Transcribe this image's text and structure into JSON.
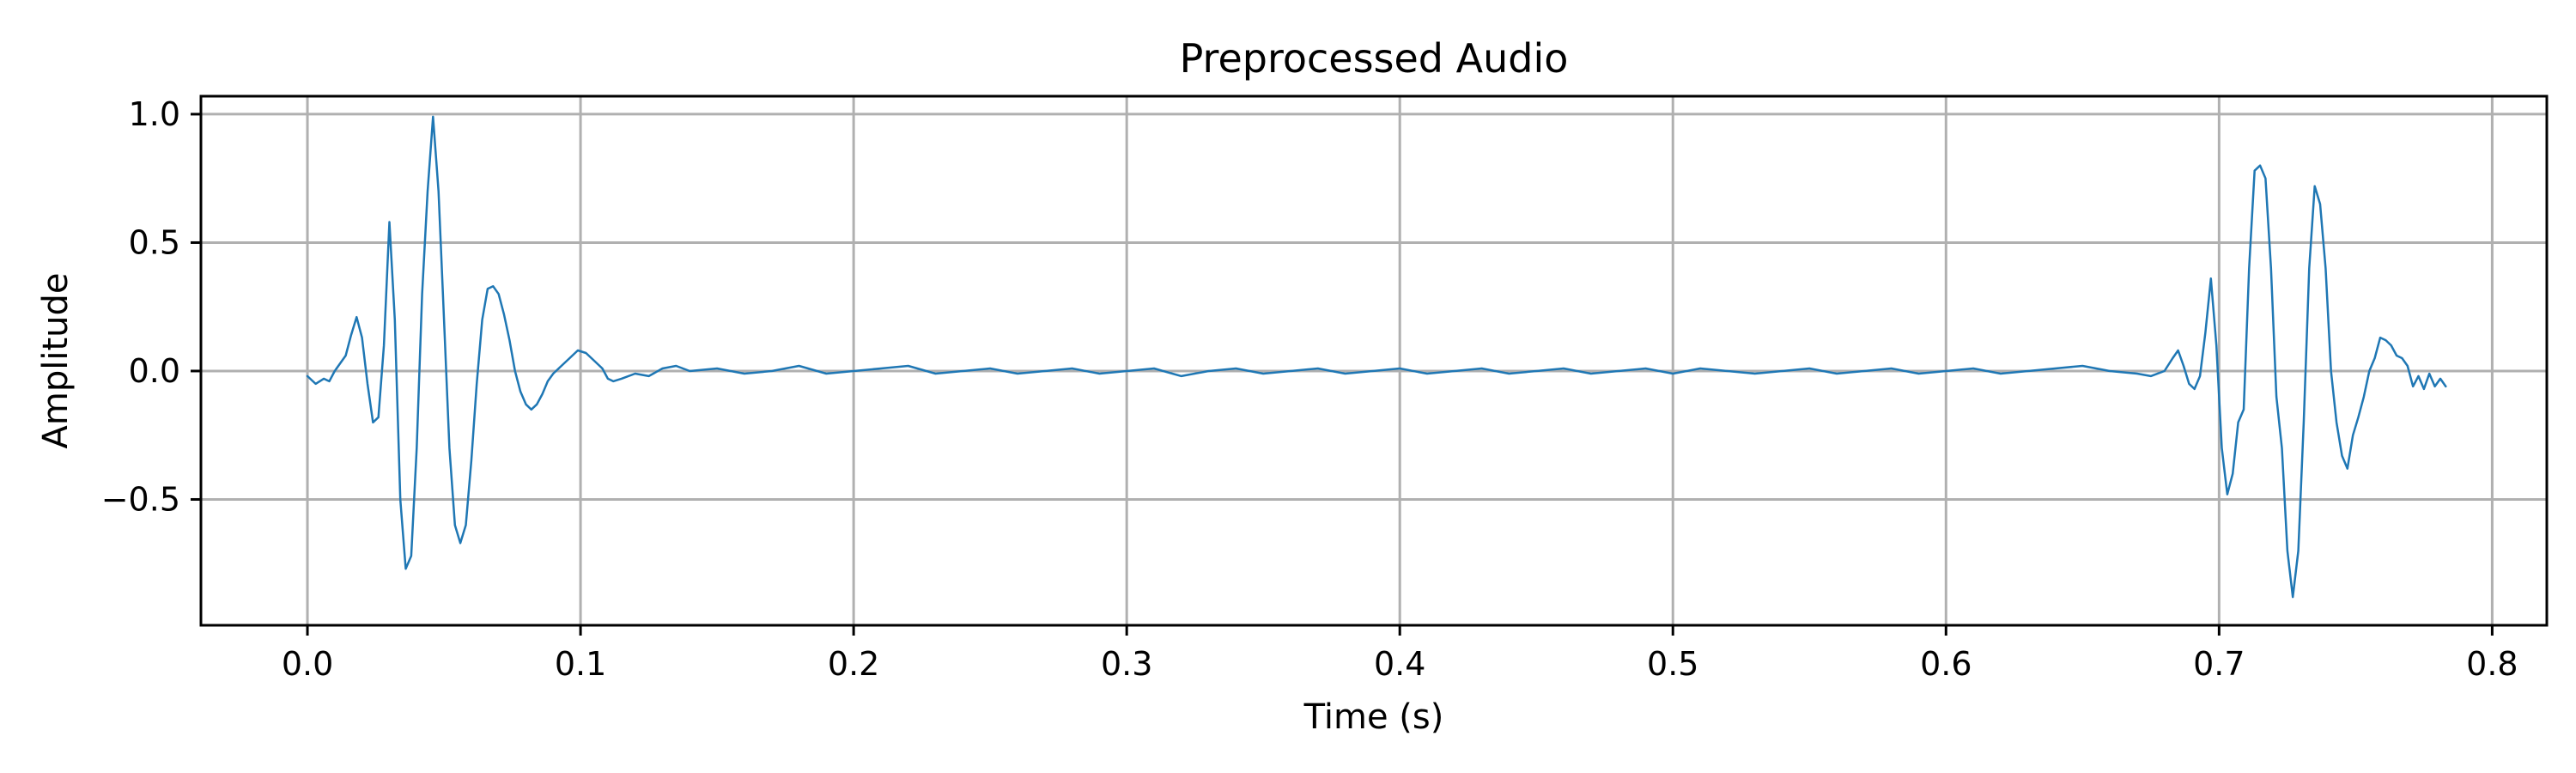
{
  "chart_data": {
    "type": "line",
    "title": "Preprocessed Audio",
    "xlabel": "Time (s)",
    "ylabel": "Amplitude",
    "xlim": [
      -0.039,
      0.82
    ],
    "ylim": [
      -0.99,
      1.07
    ],
    "grid": true,
    "legend": "none",
    "x_ticks": [
      {
        "value": 0.0,
        "label": "0.0"
      },
      {
        "value": 0.1,
        "label": "0.1"
      },
      {
        "value": 0.2,
        "label": "0.2"
      },
      {
        "value": 0.3,
        "label": "0.3"
      },
      {
        "value": 0.4,
        "label": "0.4"
      },
      {
        "value": 0.5,
        "label": "0.5"
      },
      {
        "value": 0.6,
        "label": "0.6"
      },
      {
        "value": 0.7,
        "label": "0.7"
      },
      {
        "value": 0.8,
        "label": "0.8"
      }
    ],
    "y_ticks": [
      {
        "value": 1.0,
        "label": "1.0"
      },
      {
        "value": 0.5,
        "label": "0.5"
      },
      {
        "value": 0.0,
        "label": "0.0"
      },
      {
        "value": -0.5,
        "label": "−0.5"
      }
    ],
    "series": [
      {
        "color": "#1f77b4",
        "points": [
          [
            0.0,
            -0.02
          ],
          [
            0.003,
            -0.05
          ],
          [
            0.006,
            -0.03
          ],
          [
            0.008,
            -0.04
          ],
          [
            0.01,
            0.0
          ],
          [
            0.012,
            0.03
          ],
          [
            0.014,
            0.06
          ],
          [
            0.016,
            0.14
          ],
          [
            0.018,
            0.21
          ],
          [
            0.02,
            0.13
          ],
          [
            0.022,
            -0.05
          ],
          [
            0.024,
            -0.2
          ],
          [
            0.026,
            -0.18
          ],
          [
            0.028,
            0.1
          ],
          [
            0.03,
            0.58
          ],
          [
            0.032,
            0.2
          ],
          [
            0.034,
            -0.5
          ],
          [
            0.036,
            -0.77
          ],
          [
            0.038,
            -0.72
          ],
          [
            0.04,
            -0.3
          ],
          [
            0.042,
            0.3
          ],
          [
            0.044,
            0.7
          ],
          [
            0.046,
            0.99
          ],
          [
            0.048,
            0.7
          ],
          [
            0.05,
            0.2
          ],
          [
            0.052,
            -0.3
          ],
          [
            0.054,
            -0.6
          ],
          [
            0.056,
            -0.67
          ],
          [
            0.058,
            -0.6
          ],
          [
            0.06,
            -0.35
          ],
          [
            0.062,
            -0.05
          ],
          [
            0.064,
            0.2
          ],
          [
            0.066,
            0.32
          ],
          [
            0.068,
            0.33
          ],
          [
            0.07,
            0.3
          ],
          [
            0.072,
            0.22
          ],
          [
            0.074,
            0.12
          ],
          [
            0.076,
            0.0
          ],
          [
            0.078,
            -0.08
          ],
          [
            0.08,
            -0.13
          ],
          [
            0.082,
            -0.15
          ],
          [
            0.084,
            -0.13
          ],
          [
            0.086,
            -0.09
          ],
          [
            0.088,
            -0.04
          ],
          [
            0.09,
            -0.01
          ],
          [
            0.093,
            0.02
          ],
          [
            0.096,
            0.05
          ],
          [
            0.099,
            0.08
          ],
          [
            0.102,
            0.07
          ],
          [
            0.105,
            0.04
          ],
          [
            0.108,
            0.01
          ],
          [
            0.11,
            -0.03
          ],
          [
            0.112,
            -0.04
          ],
          [
            0.115,
            -0.03
          ],
          [
            0.12,
            -0.01
          ],
          [
            0.125,
            -0.02
          ],
          [
            0.13,
            0.01
          ],
          [
            0.135,
            0.02
          ],
          [
            0.14,
            0.0
          ],
          [
            0.15,
            0.01
          ],
          [
            0.16,
            -0.01
          ],
          [
            0.17,
            0.0
          ],
          [
            0.18,
            0.02
          ],
          [
            0.19,
            -0.01
          ],
          [
            0.2,
            0.0
          ],
          [
            0.21,
            0.01
          ],
          [
            0.22,
            0.02
          ],
          [
            0.23,
            -0.01
          ],
          [
            0.24,
            0.0
          ],
          [
            0.25,
            0.01
          ],
          [
            0.26,
            -0.01
          ],
          [
            0.27,
            0.0
          ],
          [
            0.28,
            0.01
          ],
          [
            0.29,
            -0.01
          ],
          [
            0.3,
            0.0
          ],
          [
            0.31,
            0.01
          ],
          [
            0.32,
            -0.02
          ],
          [
            0.33,
            0.0
          ],
          [
            0.34,
            0.01
          ],
          [
            0.35,
            -0.01
          ],
          [
            0.36,
            0.0
          ],
          [
            0.37,
            0.01
          ],
          [
            0.38,
            -0.01
          ],
          [
            0.39,
            0.0
          ],
          [
            0.4,
            0.01
          ],
          [
            0.41,
            -0.01
          ],
          [
            0.42,
            0.0
          ],
          [
            0.43,
            0.01
          ],
          [
            0.44,
            -0.01
          ],
          [
            0.45,
            0.0
          ],
          [
            0.46,
            0.01
          ],
          [
            0.47,
            -0.01
          ],
          [
            0.48,
            0.0
          ],
          [
            0.49,
            0.01
          ],
          [
            0.5,
            -0.01
          ],
          [
            0.51,
            0.01
          ],
          [
            0.52,
            0.0
          ],
          [
            0.53,
            -0.01
          ],
          [
            0.54,
            0.0
          ],
          [
            0.55,
            0.01
          ],
          [
            0.56,
            -0.01
          ],
          [
            0.57,
            0.0
          ],
          [
            0.58,
            0.01
          ],
          [
            0.59,
            -0.01
          ],
          [
            0.6,
            0.0
          ],
          [
            0.61,
            0.01
          ],
          [
            0.62,
            -0.01
          ],
          [
            0.63,
            0.0
          ],
          [
            0.64,
            0.01
          ],
          [
            0.65,
            0.02
          ],
          [
            0.66,
            0.0
          ],
          [
            0.67,
            -0.01
          ],
          [
            0.675,
            -0.02
          ],
          [
            0.68,
            0.0
          ],
          [
            0.683,
            0.05
          ],
          [
            0.685,
            0.08
          ],
          [
            0.687,
            0.02
          ],
          [
            0.689,
            -0.05
          ],
          [
            0.691,
            -0.07
          ],
          [
            0.693,
            -0.02
          ],
          [
            0.695,
            0.15
          ],
          [
            0.697,
            0.36
          ],
          [
            0.699,
            0.1
          ],
          [
            0.701,
            -0.3
          ],
          [
            0.703,
            -0.48
          ],
          [
            0.705,
            -0.4
          ],
          [
            0.707,
            -0.2
          ],
          [
            0.709,
            -0.15
          ],
          [
            0.711,
            0.4
          ],
          [
            0.713,
            0.78
          ],
          [
            0.715,
            0.8
          ],
          [
            0.717,
            0.75
          ],
          [
            0.719,
            0.4
          ],
          [
            0.721,
            -0.1
          ],
          [
            0.723,
            -0.3
          ],
          [
            0.725,
            -0.7
          ],
          [
            0.727,
            -0.88
          ],
          [
            0.729,
            -0.7
          ],
          [
            0.731,
            -0.2
          ],
          [
            0.733,
            0.4
          ],
          [
            0.735,
            0.72
          ],
          [
            0.737,
            0.65
          ],
          [
            0.739,
            0.4
          ],
          [
            0.741,
            0.0
          ],
          [
            0.743,
            -0.2
          ],
          [
            0.745,
            -0.33
          ],
          [
            0.747,
            -0.38
          ],
          [
            0.749,
            -0.25
          ],
          [
            0.751,
            -0.18
          ],
          [
            0.753,
            -0.1
          ],
          [
            0.755,
            0.0
          ],
          [
            0.757,
            0.05
          ],
          [
            0.759,
            0.13
          ],
          [
            0.761,
            0.12
          ],
          [
            0.763,
            0.1
          ],
          [
            0.765,
            0.06
          ],
          [
            0.767,
            0.05
          ],
          [
            0.769,
            0.02
          ],
          [
            0.771,
            -0.06
          ],
          [
            0.773,
            -0.02
          ],
          [
            0.775,
            -0.07
          ],
          [
            0.777,
            -0.01
          ],
          [
            0.779,
            -0.06
          ],
          [
            0.781,
            -0.03
          ],
          [
            0.783,
            -0.06
          ]
        ]
      }
    ]
  }
}
